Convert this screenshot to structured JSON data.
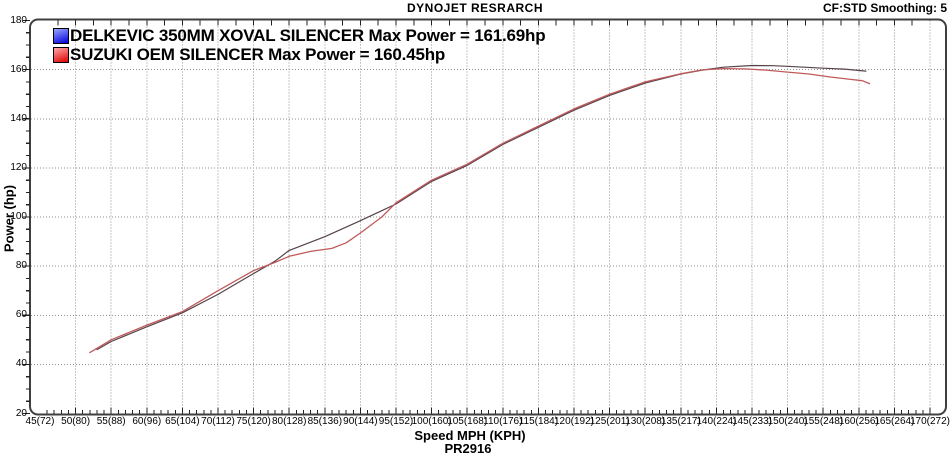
{
  "header": {
    "title": "DYNOJET RESRARCH",
    "smoothing": "CF:STD Smoothing: 5"
  },
  "legend": [
    {
      "label": "DELKEVIC 350MM XOVAL SILENCER Max Power = 161.69hp",
      "swatch_top": "#9aa6ff",
      "swatch_bottom": "#0000d8"
    },
    {
      "label": "SUZUKI OEM SILENCER Max Power = 160.45hp",
      "swatch_top": "#ffa8a8",
      "swatch_bottom": "#dd0000"
    }
  ],
  "footer": {
    "xlabel": "Speed MPH (KPH)",
    "run_id": "PR2916"
  },
  "chart_data": {
    "type": "line",
    "title": "DYNOJET RESRARCH",
    "xlabel": "Speed MPH (KPH)",
    "ylabel": "Power (hp)",
    "xlim": [
      45,
      170
    ],
    "ylim": [
      20,
      180
    ],
    "x_major_step": 5,
    "y_major_step": 20,
    "grid": "dotted",
    "grid_color": "#909090",
    "frame_color": "#3f3f3f",
    "legend_position": "top-left",
    "x_tick_labels": [
      "45(72)",
      "50(80)",
      "55(88)",
      "60(96)",
      "65(104)",
      "70(112)",
      "75(120)",
      "80(128)",
      "85(136)",
      "90(144)",
      "95(152)",
      "100(160)",
      "105(168)",
      "110(176)",
      "115(184)",
      "120(192)",
      "125(201)",
      "130(208)",
      "135(217)",
      "140(224)",
      "145(233)",
      "150(240)",
      "155(248)",
      "160(256)",
      "165(264)",
      "170(272)"
    ],
    "y_tick_labels": [
      "20",
      "40",
      "60",
      "80",
      "100",
      "120",
      "140",
      "160",
      "180"
    ],
    "series": [
      {
        "name": "DELKEVIC 350MM XOVAL SILENCER",
        "max_power_hp": 161.69,
        "color": "#564349",
        "width": 1.2,
        "points": [
          [
            53,
            46
          ],
          [
            55,
            49.3
          ],
          [
            60,
            55.3
          ],
          [
            65,
            61
          ],
          [
            70,
            68.5
          ],
          [
            75,
            77
          ],
          [
            78,
            82
          ],
          [
            80,
            86.4
          ],
          [
            85,
            92
          ],
          [
            90,
            98.5
          ],
          [
            95,
            105.3
          ],
          [
            100,
            114.5
          ],
          [
            105,
            121
          ],
          [
            110,
            129.5
          ],
          [
            115,
            136.5
          ],
          [
            120,
            143.5
          ],
          [
            125,
            149.5
          ],
          [
            130,
            154.5
          ],
          [
            135,
            158.2
          ],
          [
            138,
            159.8
          ],
          [
            141,
            161
          ],
          [
            145,
            161.7
          ],
          [
            148,
            161.6
          ],
          [
            151,
            161.2
          ],
          [
            155,
            160.6
          ],
          [
            158,
            160.2
          ],
          [
            161,
            159.4
          ]
        ]
      },
      {
        "name": "SUZUKI OEM SILENCER",
        "max_power_hp": 160.45,
        "color": "#c05a5a",
        "width": 1.3,
        "points": [
          [
            52,
            44.8
          ],
          [
            55,
            50
          ],
          [
            60,
            56
          ],
          [
            65,
            61.5
          ],
          [
            70,
            70
          ],
          [
            75,
            78.2
          ],
          [
            78,
            81.5
          ],
          [
            80,
            84
          ],
          [
            83,
            86
          ],
          [
            86,
            87.2
          ],
          [
            88,
            89.5
          ],
          [
            90,
            93.5
          ],
          [
            93,
            100
          ],
          [
            95,
            105.8
          ],
          [
            100,
            115
          ],
          [
            105,
            121.5
          ],
          [
            110,
            130
          ],
          [
            115,
            137
          ],
          [
            120,
            144
          ],
          [
            125,
            150
          ],
          [
            128,
            153
          ],
          [
            130,
            155
          ],
          [
            135,
            158.3
          ],
          [
            138,
            159.9
          ],
          [
            141,
            160.4
          ],
          [
            144,
            160.3
          ],
          [
            147,
            159.8
          ],
          [
            150,
            159
          ],
          [
            153,
            158.2
          ],
          [
            156,
            157
          ],
          [
            159,
            156
          ],
          [
            160.5,
            155.5
          ],
          [
            161.5,
            154.3
          ]
        ]
      }
    ]
  }
}
